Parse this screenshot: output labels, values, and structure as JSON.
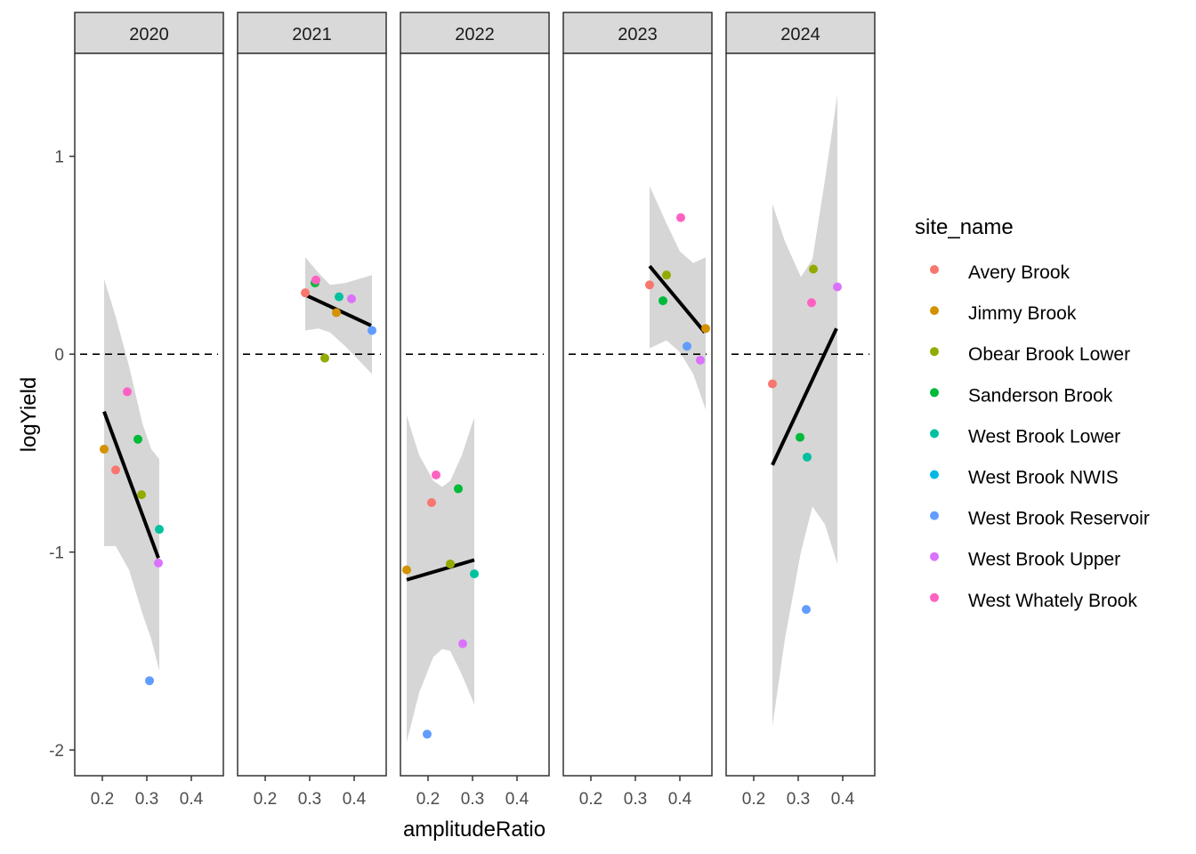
{
  "chart_data": {
    "type": "scatter",
    "facet_by": "year",
    "xlabel": "amplitudeRatio",
    "ylabel": "logYield",
    "xlim": [
      0.138,
      0.472
    ],
    "ylim": [
      -2.13,
      1.52
    ],
    "x_ticks": [
      0.2,
      0.3,
      0.4
    ],
    "x_tick_labels": [
      "0.2",
      "0.3",
      "0.4"
    ],
    "y_ticks": [
      1,
      0,
      -1,
      -2
    ],
    "y_tick_labels": [
      "1",
      "0",
      "-1",
      "-2"
    ],
    "reference_line_y": 0,
    "legend": {
      "title": "site_name",
      "position": "right",
      "entries": [
        {
          "name": "Avery Brook",
          "color": "#F8766D"
        },
        {
          "name": "Jimmy Brook",
          "color": "#D39200"
        },
        {
          "name": "Obear Brook Lower",
          "color": "#93AA00"
        },
        {
          "name": "Sanderson Brook",
          "color": "#00BA38"
        },
        {
          "name": "West Brook Lower",
          "color": "#00C19F"
        },
        {
          "name": "West Brook NWIS",
          "color": "#00B9E3"
        },
        {
          "name": "West Brook Reservoir",
          "color": "#619CFF"
        },
        {
          "name": "West Brook Upper",
          "color": "#DB72FB"
        },
        {
          "name": "West Whately Brook",
          "color": "#FF61C3"
        }
      ]
    },
    "panels": [
      {
        "label": "2020",
        "points": [
          {
            "site": "Jimmy Brook",
            "x": 0.204,
            "y": -0.48
          },
          {
            "site": "Avery Brook",
            "x": 0.23,
            "y": -0.585
          },
          {
            "site": "Sanderson Brook",
            "x": 0.28,
            "y": -0.43
          },
          {
            "site": "Obear Brook Lower",
            "x": 0.288,
            "y": -0.71
          },
          {
            "site": "West Brook Lower",
            "x": 0.328,
            "y": -0.885
          },
          {
            "site": "West Brook Upper",
            "x": 0.326,
            "y": -1.055
          },
          {
            "site": "West Whately Brook",
            "x": 0.256,
            "y": -0.19
          },
          {
            "site": "West Brook Reservoir",
            "x": 0.306,
            "y": -1.65
          }
        ],
        "fit": {
          "x": [
            0.204,
            0.326
          ],
          "y": [
            -0.29,
            -1.03
          ]
        },
        "ribbon": {
          "x": [
            0.204,
            0.23,
            0.26,
            0.29,
            0.31,
            0.328
          ],
          "upper": [
            0.38,
            0.19,
            -0.06,
            -0.35,
            -0.48,
            -0.53
          ],
          "lower": [
            -0.97,
            -0.97,
            -1.09,
            -1.31,
            -1.44,
            -1.6
          ]
        }
      },
      {
        "label": "2021",
        "points": [
          {
            "site": "Avery Brook",
            "x": 0.29,
            "y": 0.31
          },
          {
            "site": "Sanderson Brook",
            "x": 0.312,
            "y": 0.36
          },
          {
            "site": "West Whately Brook",
            "x": 0.314,
            "y": 0.375
          },
          {
            "site": "West Brook Lower",
            "x": 0.366,
            "y": 0.29
          },
          {
            "site": "West Brook Upper",
            "x": 0.394,
            "y": 0.28
          },
          {
            "site": "Jimmy Brook",
            "x": 0.36,
            "y": 0.21
          },
          {
            "site": "West Brook Reservoir",
            "x": 0.44,
            "y": 0.12
          },
          {
            "site": "Obear Brook Lower",
            "x": 0.334,
            "y": -0.02
          }
        ],
        "fit": {
          "x": [
            0.29,
            0.438
          ],
          "y": [
            0.3,
            0.145
          ]
        },
        "ribbon": {
          "x": [
            0.29,
            0.32,
            0.346,
            0.38,
            0.44
          ],
          "upper": [
            0.49,
            0.41,
            0.35,
            0.36,
            0.4
          ],
          "lower": [
            0.12,
            0.13,
            0.11,
            0.04,
            -0.1
          ]
        }
      },
      {
        "label": "2022",
        "points": [
          {
            "site": "West Whately Brook",
            "x": 0.218,
            "y": -0.61
          },
          {
            "site": "Sanderson Brook",
            "x": 0.268,
            "y": -0.68
          },
          {
            "site": "Avery Brook",
            "x": 0.208,
            "y": -0.75
          },
          {
            "site": "Obear Brook Lower",
            "x": 0.25,
            "y": -1.06
          },
          {
            "site": "Jimmy Brook",
            "x": 0.152,
            "y": -1.09
          },
          {
            "site": "West Brook Lower",
            "x": 0.304,
            "y": -1.11
          },
          {
            "site": "West Brook Upper",
            "x": 0.278,
            "y": -1.463
          },
          {
            "site": "West Brook Reservoir",
            "x": 0.198,
            "y": -1.92
          }
        ],
        "fit": {
          "x": [
            0.152,
            0.304
          ],
          "y": [
            -1.14,
            -1.04
          ]
        },
        "ribbon": {
          "x": [
            0.152,
            0.18,
            0.212,
            0.232,
            0.25,
            0.276,
            0.304
          ],
          "upper": [
            -0.31,
            -0.51,
            -0.64,
            -0.67,
            -0.64,
            -0.51,
            -0.32
          ],
          "lower": [
            -1.96,
            -1.71,
            -1.53,
            -1.49,
            -1.5,
            -1.62,
            -1.77
          ]
        }
      },
      {
        "label": "2023",
        "points": [
          {
            "site": "West Whately Brook",
            "x": 0.402,
            "y": 0.69
          },
          {
            "site": "Obear Brook Lower",
            "x": 0.37,
            "y": 0.4
          },
          {
            "site": "Avery Brook",
            "x": 0.332,
            "y": 0.35
          },
          {
            "site": "Sanderson Brook",
            "x": 0.362,
            "y": 0.27
          },
          {
            "site": "Jimmy Brook",
            "x": 0.458,
            "y": 0.13
          },
          {
            "site": "West Brook Reservoir",
            "x": 0.416,
            "y": 0.04
          },
          {
            "site": "West Brook Upper",
            "x": 0.446,
            "y": -0.03
          }
        ],
        "fit": {
          "x": [
            0.332,
            0.456
          ],
          "y": [
            0.445,
            0.11
          ]
        },
        "ribbon": {
          "x": [
            0.332,
            0.37,
            0.4,
            0.43,
            0.458
          ],
          "upper": [
            0.85,
            0.66,
            0.52,
            0.46,
            0.49
          ],
          "lower": [
            0.03,
            0.07,
            0.01,
            -0.1,
            -0.28
          ]
        }
      },
      {
        "label": "2024",
        "points": [
          {
            "site": "Obear Brook Lower",
            "x": 0.334,
            "y": 0.43
          },
          {
            "site": "West Brook Upper",
            "x": 0.388,
            "y": 0.34
          },
          {
            "site": "West Whately Brook",
            "x": 0.33,
            "y": 0.26
          },
          {
            "site": "Avery Brook",
            "x": 0.242,
            "y": -0.15
          },
          {
            "site": "Sanderson Brook",
            "x": 0.304,
            "y": -0.42
          },
          {
            "site": "West Brook Lower",
            "x": 0.32,
            "y": -0.52
          },
          {
            "site": "West Brook Reservoir",
            "x": 0.318,
            "y": -1.29
          }
        ],
        "fit": {
          "x": [
            0.242,
            0.386
          ],
          "y": [
            -0.56,
            0.13
          ]
        },
        "ribbon": {
          "x": [
            0.242,
            0.27,
            0.306,
            0.332,
            0.36,
            0.388
          ],
          "upper": [
            0.76,
            0.57,
            0.39,
            0.48,
            0.88,
            1.31
          ],
          "lower": [
            -1.88,
            -1.44,
            -1.0,
            -0.77,
            -0.86,
            -1.06
          ]
        }
      }
    ]
  }
}
